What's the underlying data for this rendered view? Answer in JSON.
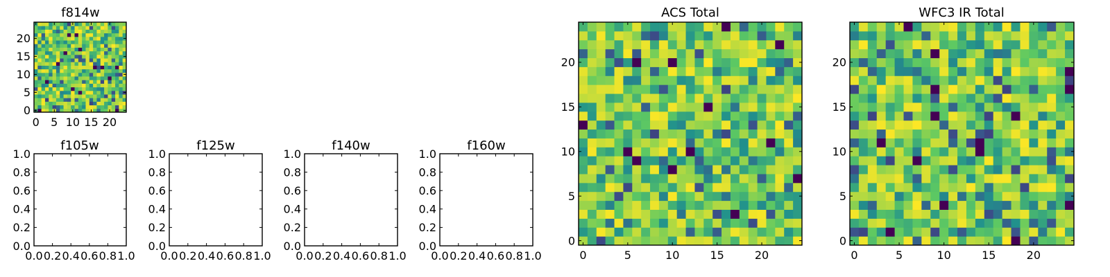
{
  "chart_data": [
    {
      "type": "heatmap",
      "title": "f814w",
      "grid_size": 25,
      "seed": 814,
      "xlim": [
        -0.5,
        24.5
      ],
      "ylim": [
        -0.5,
        24.5
      ],
      "xticks": [
        0,
        5,
        10,
        15,
        20
      ],
      "yticks": [
        0,
        5,
        10,
        15,
        20
      ],
      "colormap": "viridis"
    },
    {
      "type": "heatmap",
      "title": "f105w",
      "empty": true,
      "xlim": [
        0,
        1
      ],
      "ylim": [
        0,
        1
      ],
      "xticks": [
        0.0,
        0.2,
        0.4,
        0.6,
        0.8,
        1.0
      ],
      "yticks": [
        0.0,
        0.2,
        0.4,
        0.6,
        0.8,
        1.0
      ]
    },
    {
      "type": "heatmap",
      "title": "f125w",
      "empty": true,
      "xlim": [
        0,
        1
      ],
      "ylim": [
        0,
        1
      ],
      "xticks": [
        0.0,
        0.2,
        0.4,
        0.6,
        0.8,
        1.0
      ],
      "yticks": [
        0.0,
        0.2,
        0.4,
        0.6,
        0.8,
        1.0
      ]
    },
    {
      "type": "heatmap",
      "title": "f140w",
      "empty": true,
      "xlim": [
        0,
        1
      ],
      "ylim": [
        0,
        1
      ],
      "xticks": [
        0.0,
        0.2,
        0.4,
        0.6,
        0.8,
        1.0
      ],
      "yticks": [
        0.0,
        0.2,
        0.4,
        0.6,
        0.8,
        1.0
      ]
    },
    {
      "type": "heatmap",
      "title": "f160w",
      "empty": true,
      "xlim": [
        0,
        1
      ],
      "ylim": [
        0,
        1
      ],
      "xticks": [
        0.0,
        0.2,
        0.4,
        0.6,
        0.8,
        1.0
      ],
      "yticks": [
        0.0,
        0.2,
        0.4,
        0.6,
        0.8,
        1.0
      ]
    },
    {
      "type": "heatmap",
      "title": "ACS Total",
      "grid_size": 25,
      "seed": 2101,
      "xlim": [
        -0.5,
        24.5
      ],
      "ylim": [
        -0.5,
        24.5
      ],
      "xticks": [
        0,
        5,
        10,
        15,
        20
      ],
      "yticks": [
        0,
        5,
        10,
        15,
        20
      ],
      "colormap": "viridis"
    },
    {
      "type": "heatmap",
      "title": "WFC3 IR Total",
      "grid_size": 25,
      "seed": 3307,
      "xlim": [
        -0.5,
        24.5
      ],
      "ylim": [
        -0.5,
        24.5
      ],
      "xticks": [
        0,
        5,
        10,
        15,
        20
      ],
      "yticks": [
        0,
        5,
        10,
        15,
        20
      ],
      "colormap": "viridis"
    }
  ]
}
